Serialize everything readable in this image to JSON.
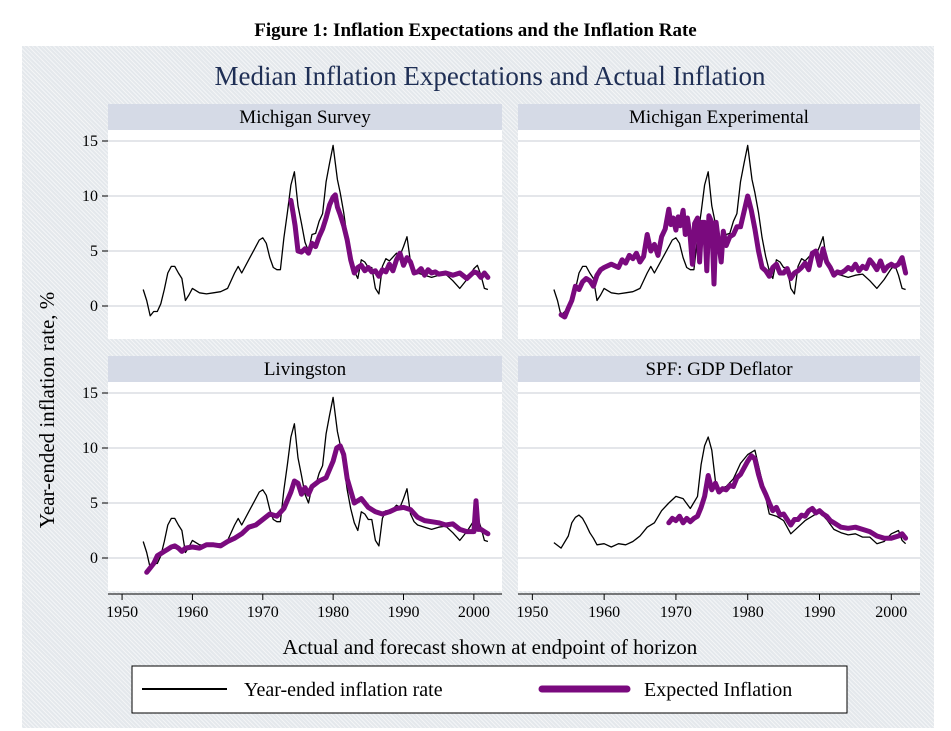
{
  "figure_caption": "Figure 1: Inflation Expectations and the Inflation Rate",
  "colors": {
    "actual": "#000000",
    "expected": "#7a0a7e",
    "title": "#1f2f55",
    "strip": "#d5dae6",
    "grid": "#c9ccd6"
  },
  "chart_data": {
    "type": "line",
    "title": "Median Inflation Expectations and Actual Inflation",
    "ylabel": "Year-ended inflation rate, %",
    "xlabel": "Actual and forecast shown at endpoint of horizon",
    "xlim": [
      1948,
      2004
    ],
    "ylim": [
      -3,
      16
    ],
    "xticks": [
      "1950",
      "1960",
      "1970",
      "1980",
      "1990",
      "2000"
    ],
    "yticks": [
      "0",
      "5",
      "10",
      "15"
    ],
    "legend": {
      "placement": "bottom",
      "entries": [
        "Year-ended inflation rate",
        "Expected Inflation"
      ]
    },
    "actual_cpi": {
      "name": "Year-ended inflation rate",
      "x": [
        1953,
        1953.5,
        1954,
        1954.5,
        1955,
        1955.5,
        1956,
        1956.5,
        1957,
        1957.5,
        1958,
        1958.5,
        1959,
        1959.5,
        1960,
        1961,
        1962,
        1963,
        1964,
        1965,
        1966,
        1966.5,
        1967,
        1968,
        1969,
        1969.5,
        1970,
        1970.5,
        1971,
        1971.5,
        1972,
        1972.5,
        1973,
        1973.5,
        1974,
        1974.5,
        1975,
        1975.5,
        1976,
        1976.5,
        1977,
        1977.5,
        1978,
        1978.5,
        1979,
        1979.5,
        1980,
        1980.3,
        1980.6,
        1981,
        1981.5,
        1982,
        1982.5,
        1983,
        1983.5,
        1984,
        1984.5,
        1985,
        1985.5,
        1986,
        1986.5,
        1987,
        1987.5,
        1988,
        1989,
        1989.5,
        1990,
        1990.5,
        1991,
        1991.5,
        1992,
        1993,
        1994,
        1995,
        1996,
        1997,
        1998,
        1999,
        2000,
        2000.5,
        2001,
        2001.5,
        2002
      ],
      "values": [
        1.5,
        0.5,
        -0.9,
        -0.5,
        -0.5,
        0.2,
        1.5,
        3.0,
        3.6,
        3.6,
        3.0,
        2.5,
        0.5,
        1.0,
        1.6,
        1.2,
        1.1,
        1.2,
        1.3,
        1.6,
        3.0,
        3.6,
        3.0,
        4.2,
        5.4,
        6.0,
        6.2,
        5.7,
        4.4,
        3.5,
        3.3,
        3.3,
        6.2,
        8.5,
        11.0,
        12.2,
        9.1,
        7.5,
        5.8,
        5.0,
        6.5,
        6.6,
        7.7,
        8.4,
        11.3,
        13.0,
        14.6,
        13.0,
        11.5,
        10.3,
        8.5,
        6.2,
        4.5,
        3.2,
        2.5,
        4.2,
        4.0,
        3.5,
        3.5,
        1.6,
        1.1,
        3.6,
        4.3,
        4.1,
        4.8,
        4.6,
        5.4,
        6.3,
        4.0,
        3.3,
        3.0,
        2.8,
        2.6,
        2.8,
        2.9,
        2.3,
        1.6,
        2.4,
        3.4,
        3.7,
        2.8,
        1.6,
        1.5
      ]
    },
    "actual_gdp": {
      "name": "Year-ended inflation rate",
      "x": [
        1953,
        1954,
        1955,
        1955.5,
        1956,
        1956.5,
        1957,
        1957.5,
        1958,
        1958.5,
        1959,
        1960,
        1961,
        1962,
        1963,
        1964,
        1965,
        1966,
        1967,
        1968,
        1969,
        1970,
        1971,
        1972,
        1973,
        1973.5,
        1974,
        1974.5,
        1975,
        1975.5,
        1976,
        1977,
        1978,
        1979,
        1980,
        1981,
        1982,
        1983,
        1984,
        1985,
        1986,
        1987,
        1988,
        1989,
        1990,
        1991,
        1992,
        1993,
        1994,
        1995,
        1996,
        1997,
        1998,
        1999,
        2000,
        2001,
        2001.5,
        2002
      ],
      "values": [
        1.4,
        0.9,
        2.0,
        3.2,
        3.7,
        3.9,
        3.6,
        3.0,
        2.3,
        1.8,
        1.2,
        1.3,
        1.0,
        1.3,
        1.2,
        1.5,
        2.0,
        2.8,
        3.2,
        4.3,
        5.0,
        5.6,
        5.4,
        4.5,
        5.6,
        8.5,
        10.2,
        11.0,
        9.8,
        7.0,
        6.3,
        6.5,
        7.2,
        8.6,
        9.4,
        9.8,
        7.0,
        4.0,
        3.8,
        3.4,
        2.2,
        2.8,
        3.4,
        3.8,
        4.2,
        3.5,
        2.6,
        2.3,
        2.1,
        2.2,
        1.9,
        1.9,
        1.3,
        1.5,
        2.2,
        2.5,
        1.6,
        1.3
      ]
    },
    "panels": [
      {
        "title": "Michigan Survey",
        "series": "cpi",
        "expected": {
          "x": [
            1974,
            1974.3,
            1974.6,
            1975,
            1975.5,
            1976,
            1976.5,
            1977,
            1977.5,
            1978,
            1978.5,
            1979,
            1979.5,
            1980,
            1980.3,
            1980.6,
            1981,
            1981.5,
            1982,
            1982.5,
            1983,
            1983.5,
            1984,
            1984.5,
            1985,
            1985.5,
            1986,
            1986.5,
            1987,
            1987.5,
            1988,
            1988.5,
            1989,
            1989.5,
            1990,
            1990.5,
            1991,
            1991.5,
            1992,
            1992.5,
            1993,
            1993.5,
            1994,
            1994.5,
            1995,
            1996,
            1997,
            1998,
            1999,
            2000,
            2000.5,
            2001,
            2001.5,
            2002
          ],
          "values": [
            9.6,
            8.5,
            7.3,
            5.0,
            4.9,
            5.2,
            4.8,
            5.7,
            5.4,
            6.3,
            7.0,
            8.0,
            9.2,
            9.9,
            10.1,
            9.0,
            8.3,
            7.3,
            6.0,
            4.2,
            3.0,
            3.5,
            3.7,
            3.2,
            3.5,
            3.1,
            3.2,
            2.7,
            3.3,
            3.1,
            3.8,
            3.2,
            4.2,
            4.8,
            3.7,
            4.4,
            4.0,
            3.0,
            3.1,
            3.4,
            2.8,
            3.3,
            3.0,
            3.1,
            2.9,
            3.0,
            2.8,
            3.0,
            2.5,
            3.1,
            3.0,
            2.6,
            3.0,
            2.6
          ]
        }
      },
      {
        "title": "Michigan Experimental",
        "series": "cpi",
        "expected": {
          "x": [
            1954,
            1954.5,
            1955,
            1955.5,
            1956,
            1956.5,
            1957,
            1957.5,
            1958,
            1958.5,
            1959,
            1959.5,
            1960,
            1961,
            1962,
            1962.5,
            1963,
            1963.5,
            1964,
            1964.5,
            1965,
            1965.5,
            1966,
            1966.5,
            1967,
            1967.5,
            1968,
            1968.5,
            1969,
            1969.3,
            1969.6,
            1970,
            1970.3,
            1970.6,
            1971,
            1971.3,
            1971.6,
            1972,
            1972.3,
            1972.6,
            1973,
            1973.3,
            1973.6,
            1974,
            1974.3,
            1974.6,
            1975,
            1975.3,
            1975.6,
            1976,
            1976.3,
            1976.6,
            1977,
            1977.5,
            1978,
            1978.5,
            1979,
            1979.5,
            1980,
            1980.5,
            1981,
            1981.5,
            1982,
            1982.5,
            1983,
            1983.5,
            1984,
            1984.5,
            1985,
            1985.5,
            1986,
            1986.5,
            1987,
            1987.5,
            1988,
            1988.5,
            1989,
            1989.5,
            1990,
            1990.5,
            1991,
            1991.5,
            1992,
            1992.5,
            1993,
            1993.5,
            1994,
            1994.5,
            1995,
            1995.5,
            1996,
            1996.5,
            1997,
            1997.5,
            1998,
            1998.5,
            1999,
            1999.5,
            2000,
            2000.5,
            2001,
            2001.5,
            2002
          ],
          "values": [
            -0.8,
            -1.0,
            -0.2,
            0.5,
            1.8,
            1.5,
            2.2,
            2.5,
            2.3,
            1.8,
            2.8,
            3.3,
            3.5,
            3.8,
            3.5,
            4.2,
            3.9,
            4.6,
            4.3,
            4.8,
            4.0,
            4.5,
            6.5,
            5.0,
            5.6,
            4.6,
            6.3,
            7.0,
            8.8,
            7.4,
            8.0,
            6.9,
            8.1,
            7.3,
            8.7,
            6.5,
            8.0,
            6.2,
            3.8,
            7.5,
            8.0,
            4.0,
            7.6,
            7.6,
            3.2,
            8.2,
            7.6,
            2.0,
            7.6,
            5.5,
            4.0,
            6.8,
            5.5,
            6.3,
            6.5,
            7.2,
            7.2,
            8.6,
            10.0,
            8.7,
            7.0,
            5.0,
            3.5,
            3.2,
            2.7,
            3.5,
            3.8,
            3.0,
            3.0,
            3.4,
            2.5,
            3.0,
            3.2,
            3.5,
            3.9,
            3.3,
            4.8,
            5.0,
            3.7,
            5.2,
            4.0,
            3.5,
            2.8,
            3.1,
            3.0,
            3.2,
            3.5,
            3.3,
            3.8,
            3.2,
            3.6,
            3.4,
            4.2,
            3.8,
            3.3,
            4.1,
            3.2,
            3.6,
            3.8,
            3.6,
            3.8,
            4.4,
            3.0
          ]
        }
      },
      {
        "title": "Livingston",
        "series": "cpi",
        "expected": {
          "x": [
            1953.5,
            1954,
            1954.5,
            1955,
            1955.5,
            1956,
            1956.5,
            1957,
            1957.5,
            1958,
            1958.5,
            1959,
            1960,
            1961,
            1962,
            1963,
            1964,
            1965,
            1966,
            1967,
            1968,
            1969,
            1970,
            1971,
            1972,
            1973,
            1974,
            1974.5,
            1975,
            1975.5,
            1976,
            1976.5,
            1977,
            1978,
            1979,
            1980,
            1980.5,
            1981,
            1981.5,
            1982,
            1983,
            1984,
            1985,
            1986,
            1987,
            1988,
            1989,
            1990,
            1991,
            1992,
            1993,
            1994,
            1995,
            1996,
            1997,
            1998,
            1999,
            2000,
            2000.3,
            2000.6,
            2001,
            2001.5,
            2002
          ],
          "values": [
            -1.3,
            -0.9,
            -0.5,
            0.2,
            0.4,
            0.6,
            0.8,
            1.0,
            1.1,
            0.9,
            0.6,
            0.9,
            1.0,
            0.9,
            1.2,
            1.2,
            1.1,
            1.5,
            1.8,
            2.2,
            2.8,
            3.0,
            3.5,
            4.0,
            3.8,
            4.5,
            6.0,
            7.0,
            6.8,
            5.8,
            6.4,
            5.8,
            6.5,
            7.0,
            7.3,
            8.8,
            10.0,
            10.2,
            9.4,
            7.2,
            5.0,
            5.4,
            4.6,
            4.2,
            4.0,
            4.2,
            4.5,
            4.6,
            4.4,
            3.7,
            3.4,
            3.3,
            3.2,
            3.0,
            3.1,
            2.6,
            2.4,
            2.4,
            5.2,
            2.6,
            2.6,
            2.4,
            2.2
          ]
        }
      },
      {
        "title": "SPF: GDP Deflator",
        "series": "gdp",
        "expected": {
          "x": [
            1969,
            1969.5,
            1970,
            1970.5,
            1971,
            1971.5,
            1972,
            1972.5,
            1973,
            1973.5,
            1974,
            1974.5,
            1975,
            1975.5,
            1976,
            1976.5,
            1977,
            1977.5,
            1978,
            1978.5,
            1979,
            1979.5,
            1980,
            1980.5,
            1981,
            1981.5,
            1982,
            1982.5,
            1983,
            1983.5,
            1984,
            1984.5,
            1985,
            1985.5,
            1986,
            1986.5,
            1987,
            1987.5,
            1988,
            1988.5,
            1989,
            1989.5,
            1990,
            1990.5,
            1991,
            1991.5,
            1992,
            1993,
            1994,
            1995,
            1996,
            1997,
            1998,
            1999,
            2000,
            2001,
            2001.5,
            2002
          ],
          "values": [
            3.2,
            3.6,
            3.4,
            3.8,
            3.2,
            3.6,
            3.3,
            3.6,
            3.8,
            4.6,
            5.6,
            7.5,
            6.2,
            6.8,
            6.0,
            6.3,
            6.2,
            6.6,
            6.5,
            7.3,
            7.6,
            8.2,
            8.8,
            9.3,
            9.0,
            7.6,
            6.5,
            5.8,
            5.0,
            4.3,
            4.6,
            3.9,
            4.0,
            3.5,
            3.0,
            3.5,
            3.5,
            3.9,
            3.8,
            4.3,
            4.5,
            4.1,
            4.3,
            4.0,
            3.8,
            3.4,
            3.2,
            2.8,
            2.7,
            2.8,
            2.6,
            2.4,
            2.0,
            1.8,
            1.8,
            2.0,
            2.2,
            1.8
          ]
        }
      }
    ]
  }
}
